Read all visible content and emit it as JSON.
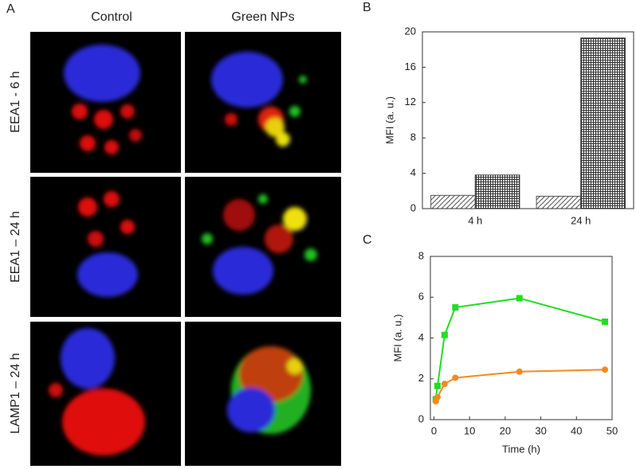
{
  "panel_a": {
    "label": "A",
    "columns": [
      "Control",
      "Green NPs"
    ],
    "rows": [
      "EEA1 - 6 h",
      "EEA1 – 24 h",
      "LAMP1 – 24 h"
    ]
  },
  "chart_data": [
    {
      "type": "bar",
      "panel_label": "B",
      "ylabel": "MFI (a. u.)",
      "categories": [
        "4 h",
        "24 h"
      ],
      "series": [
        {
          "pattern": "diagonal",
          "color": "#555555",
          "values": [
            1.5,
            1.4
          ]
        },
        {
          "pattern": "crosshatch",
          "color": "#333333",
          "values": [
            3.8,
            19.3
          ]
        }
      ],
      "ylim": [
        0,
        20
      ],
      "yticks": [
        0,
        4,
        8,
        12,
        16,
        20
      ]
    },
    {
      "type": "line",
      "panel_label": "C",
      "xlabel": "Time (h)",
      "ylabel": "MFI (a. u.)",
      "x": [
        0.5,
        1,
        3,
        6,
        24,
        48
      ],
      "series": [
        {
          "color": "#22dd22",
          "marker": "square",
          "values": [
            1.0,
            1.65,
            4.15,
            5.5,
            5.95,
            4.8
          ]
        },
        {
          "color": "#f5891f",
          "marker": "circle",
          "values": [
            0.9,
            1.1,
            1.75,
            2.05,
            2.35,
            2.45
          ]
        }
      ],
      "xlim": [
        -1,
        50
      ],
      "xticks": [
        0,
        10,
        20,
        30,
        40,
        50
      ],
      "ylim": [
        0,
        8
      ],
      "yticks": [
        0,
        2,
        4,
        6,
        8
      ]
    }
  ]
}
